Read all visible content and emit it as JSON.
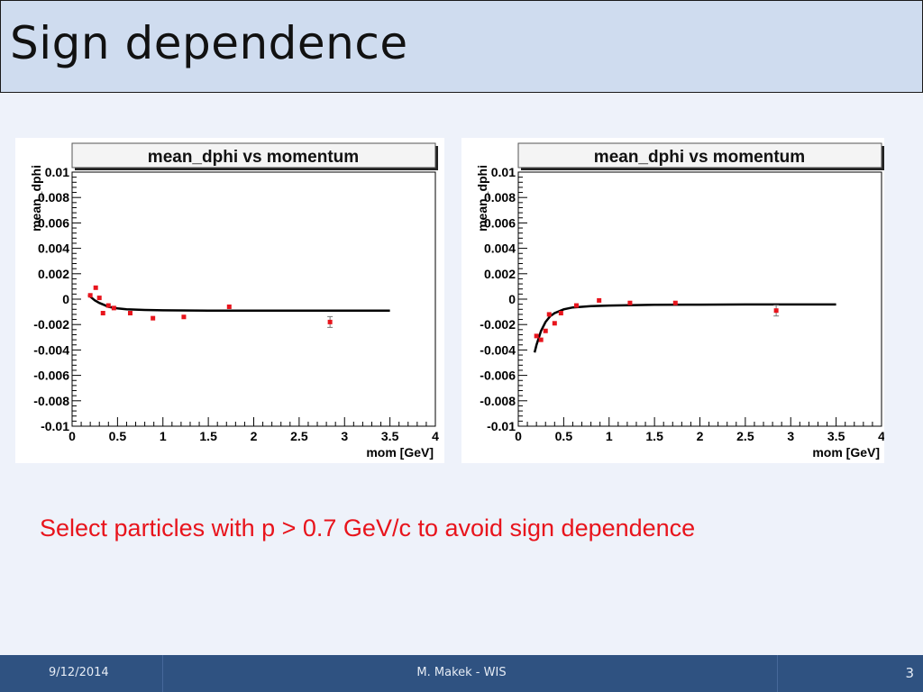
{
  "slide": {
    "title": "Sign dependence",
    "note": "Select particles with p > 0.7 GeV/c to avoid sign dependence"
  },
  "footer": {
    "date": "9/12/2014",
    "author": "M. Makek - WIS",
    "page": "3"
  },
  "chart_data": [
    {
      "type": "scatter",
      "title": "mean_dphi vs momentum",
      "xlabel": "mom [GeV]",
      "ylabel": "mean_dphi",
      "xlim": [
        0,
        4
      ],
      "ylim": [
        -0.01,
        0.01
      ],
      "xticks": [
        "0",
        "0.5",
        "1",
        "1.5",
        "2",
        "2.5",
        "3",
        "3.5",
        "4"
      ],
      "yticks": [
        "-0.01",
        "-0.008",
        "-0.006",
        "-0.004",
        "-0.002",
        "0",
        "0.002",
        "0.004",
        "0.006",
        "0.008",
        "0.01"
      ],
      "grid": false,
      "points": {
        "x": [
          0.2,
          0.26,
          0.3,
          0.34,
          0.4,
          0.46,
          0.64,
          0.89,
          1.23,
          1.73,
          2.84
        ],
        "y": [
          0.0003,
          0.0009,
          0.0001,
          -0.0011,
          -0.0005,
          -0.0007,
          -0.0011,
          -0.0015,
          -0.0014,
          -0.0006,
          -0.0018
        ],
        "marker_color": "#e8141c"
      },
      "fit_curve": {
        "x": [
          0.18,
          0.2,
          0.25,
          0.3,
          0.35,
          0.4,
          0.5,
          0.6,
          0.8,
          1.0,
          1.5,
          2.0,
          2.5,
          3.0,
          3.5
        ],
        "y": [
          0.00035,
          0.0002,
          -0.0001,
          -0.0003,
          -0.00045,
          -0.0006,
          -0.00072,
          -0.0008,
          -0.00085,
          -0.00088,
          -0.0009,
          -0.0009,
          -0.0009,
          -0.0009,
          -0.0009
        ],
        "color": "#000000"
      }
    },
    {
      "type": "scatter",
      "title": "mean_dphi vs momentum",
      "xlabel": "mom [GeV]",
      "ylabel": "mean_dphi",
      "xlim": [
        0,
        4
      ],
      "ylim": [
        -0.01,
        0.01
      ],
      "xticks": [
        "0",
        "0.5",
        "1",
        "1.5",
        "2",
        "2.5",
        "3",
        "3.5",
        "4"
      ],
      "yticks": [
        "-0.01",
        "-0.008",
        "-0.006",
        "-0.004",
        "-0.002",
        "0",
        "0.002",
        "0.004",
        "0.006",
        "0.008",
        "0.01"
      ],
      "grid": false,
      "points": {
        "x": [
          0.2,
          0.25,
          0.3,
          0.34,
          0.4,
          0.47,
          0.64,
          0.89,
          1.23,
          1.73,
          2.84
        ],
        "y": [
          -0.0029,
          -0.0032,
          -0.0025,
          -0.0012,
          -0.0019,
          -0.0011,
          -0.0005,
          -0.0001,
          -0.0003,
          -0.0003,
          -0.0009
        ],
        "marker_color": "#e8141c"
      },
      "fit_curve": {
        "x": [
          0.18,
          0.2,
          0.25,
          0.3,
          0.35,
          0.4,
          0.5,
          0.6,
          0.8,
          1.0,
          1.5,
          2.0,
          2.5,
          3.0,
          3.5
        ],
        "y": [
          -0.0042,
          -0.0036,
          -0.0025,
          -0.0018,
          -0.00135,
          -0.0011,
          -0.0008,
          -0.00065,
          -0.00055,
          -0.0005,
          -0.00045,
          -0.00043,
          -0.00042,
          -0.00042,
          -0.00042
        ],
        "color": "#000000"
      }
    }
  ]
}
